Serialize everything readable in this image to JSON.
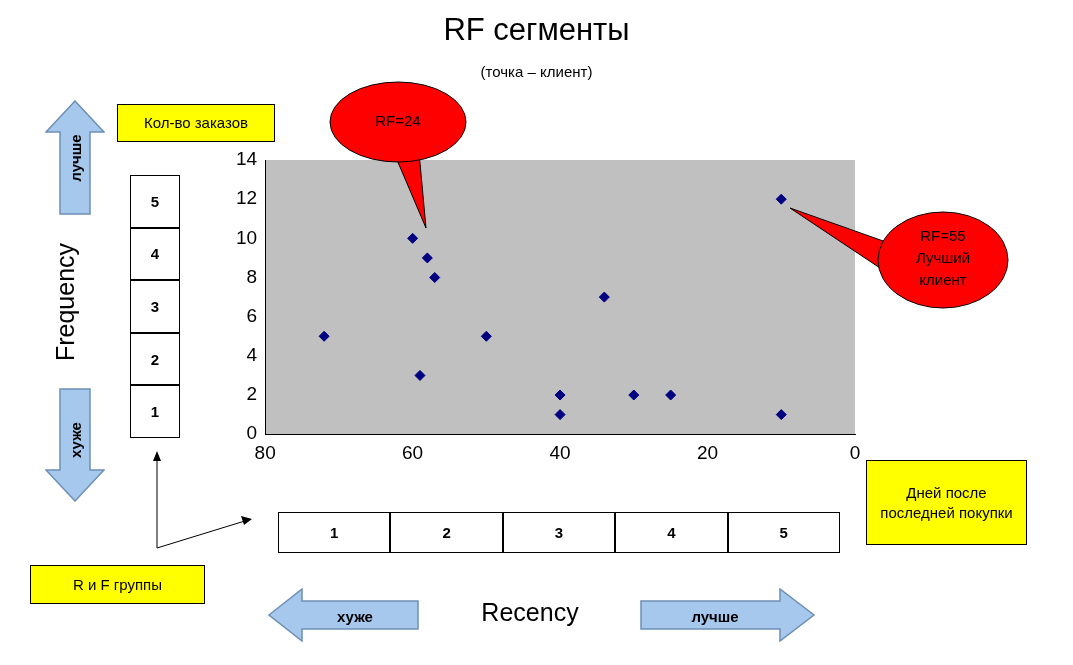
{
  "chart_data": {
    "type": "scatter",
    "title": "RF сегменты",
    "subtitle": "(точка – клиент)",
    "x": [
      72,
      60,
      58,
      57,
      59,
      50,
      40,
      40,
      34,
      30,
      25,
      10,
      10
    ],
    "values": [
      5,
      10,
      9,
      8,
      3,
      5,
      2,
      1,
      7,
      2,
      2,
      12,
      1
    ],
    "color": "#000080",
    "marker": "diamond",
    "xlim": [
      80,
      0
    ],
    "xticks": [
      80,
      60,
      40,
      20,
      0
    ],
    "ylim": [
      0,
      14
    ],
    "yticks": [
      0,
      2,
      4,
      6,
      8,
      10,
      12,
      14
    ],
    "annotations": [
      "RF=24",
      "RF=55 Лучший клиент",
      "Кол-во заказов",
      "Дней после последней покупки",
      "R и F группы",
      "лучше",
      "хуже",
      "хуже",
      "лучше",
      "5",
      "4",
      "3",
      "2",
      "1",
      "1",
      "2",
      "3",
      "4",
      "5",
      "Recency",
      "Frequency"
    ]
  }
}
